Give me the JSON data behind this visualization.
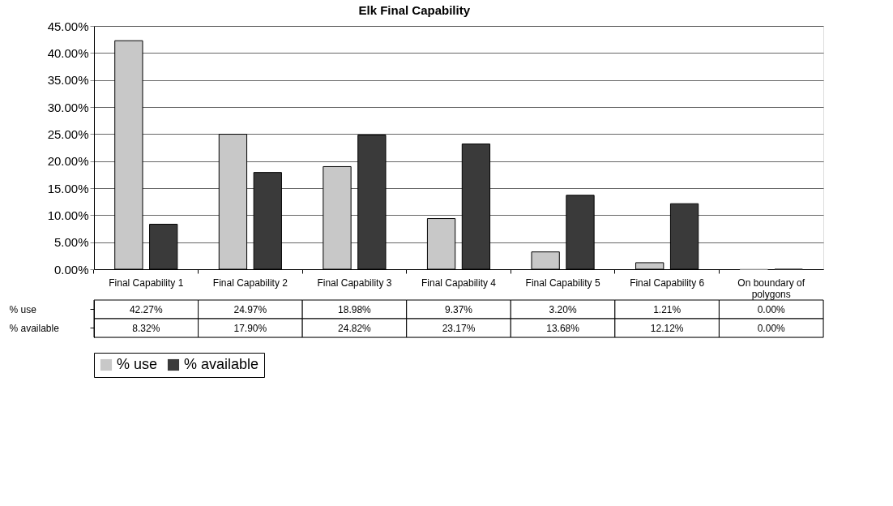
{
  "chart_data": {
    "type": "bar",
    "title": "Elk Final Capability",
    "categories": [
      "Final Capability 1",
      "Final Capability 2",
      "Final Capability 3",
      "Final Capability 4",
      "Final Capability 5",
      "Final Capability 6",
      "On boundary of polygons"
    ],
    "series": [
      {
        "name": "% use",
        "color": "#c8c8c8",
        "values": [
          42.27,
          24.97,
          18.98,
          9.37,
          3.2,
          1.21,
          0.0
        ],
        "value_labels": [
          "42.27%",
          "24.97%",
          "18.98%",
          "9.37%",
          "3.20%",
          "1.21%",
          "0.00%"
        ]
      },
      {
        "name": "% available",
        "color": "#3a3a3a",
        "values": [
          8.32,
          17.9,
          24.82,
          23.17,
          13.68,
          12.12,
          0.0
        ],
        "value_labels": [
          "8.32%",
          "17.90%",
          "24.82%",
          "23.17%",
          "13.68%",
          "12.12%",
          "0.00%"
        ]
      }
    ],
    "ylim": [
      0,
      45
    ],
    "yticks": [
      {
        "value": 0,
        "label": "0.00%"
      },
      {
        "value": 5,
        "label": "5.00%"
      },
      {
        "value": 10,
        "label": "10.00%"
      },
      {
        "value": 15,
        "label": "15.00%"
      },
      {
        "value": 20,
        "label": "20.00%"
      },
      {
        "value": 25,
        "label": "25.00%"
      },
      {
        "value": 30,
        "label": "30.00%"
      },
      {
        "value": 35,
        "label": "35.00%"
      },
      {
        "value": 40,
        "label": "40.00%"
      },
      {
        "value": 45,
        "label": "45.00%"
      }
    ],
    "grid": "y",
    "legend": "bottom"
  }
}
